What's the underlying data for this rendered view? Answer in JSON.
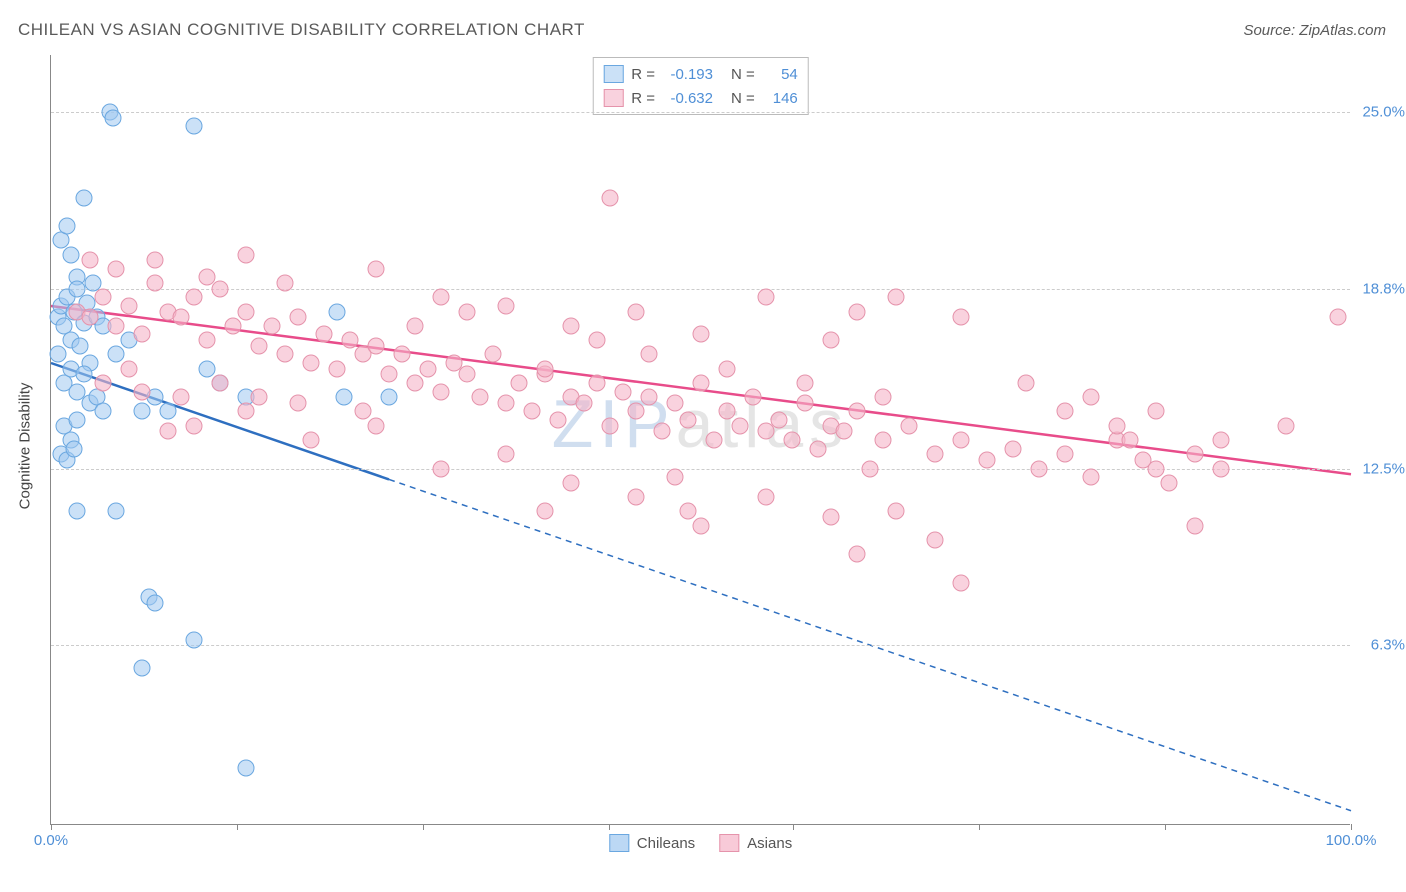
{
  "title": "CHILEAN VS ASIAN COGNITIVE DISABILITY CORRELATION CHART",
  "source": "Source: ZipAtlas.com",
  "watermark": "ZIPatlas",
  "y_axis_title": "Cognitive Disability",
  "chart": {
    "type": "scatter",
    "xlim": [
      0,
      100
    ],
    "ylim": [
      0,
      27
    ],
    "xticks": [
      0,
      14.3,
      28.6,
      42.9,
      57.1,
      71.4,
      85.7,
      100
    ],
    "xtick_labels": {
      "0": "0.0%",
      "100": "100.0%"
    },
    "yticks": [
      6.3,
      12.5,
      18.8,
      25.0
    ],
    "ytick_labels": [
      "6.3%",
      "12.5%",
      "18.8%",
      "25.0%"
    ],
    "background_color": "#ffffff",
    "grid_color": "#cccccc",
    "axis_color": "#888888",
    "point_radius": 8.5,
    "series": [
      {
        "name": "Chileans",
        "fill": "rgba(160,200,240,0.55)",
        "stroke": "#6aa7e0",
        "trend_color": "#2e6fc0",
        "trend": {
          "x1": 0,
          "y1": 16.2,
          "x2": 100,
          "y2": 0.5,
          "solid_until_x": 26
        },
        "R": "-0.193",
        "N": "54",
        "points": [
          [
            0.5,
            17.8
          ],
          [
            0.8,
            18.2
          ],
          [
            1.0,
            17.5
          ],
          [
            1.2,
            18.5
          ],
          [
            1.5,
            17.0
          ],
          [
            1.8,
            18.0
          ],
          [
            2.0,
            19.2
          ],
          [
            2.2,
            16.8
          ],
          [
            2.5,
            17.6
          ],
          [
            2.8,
            18.3
          ],
          [
            3.0,
            16.2
          ],
          [
            3.2,
            19.0
          ],
          [
            3.5,
            17.8
          ],
          [
            1.0,
            15.5
          ],
          [
            1.5,
            16.0
          ],
          [
            2.0,
            15.2
          ],
          [
            2.5,
            15.8
          ],
          [
            3.0,
            14.8
          ],
          [
            3.5,
            15.0
          ],
          [
            4.0,
            14.5
          ],
          [
            0.8,
            20.5
          ],
          [
            1.2,
            21.0
          ],
          [
            1.5,
            20.0
          ],
          [
            2.0,
            18.8
          ],
          [
            0.5,
            16.5
          ],
          [
            1.0,
            14.0
          ],
          [
            1.5,
            13.5
          ],
          [
            2.0,
            14.2
          ],
          [
            0.8,
            13.0
          ],
          [
            1.2,
            12.8
          ],
          [
            1.8,
            13.2
          ],
          [
            4.5,
            25.0
          ],
          [
            4.8,
            24.8
          ],
          [
            11.0,
            24.5
          ],
          [
            2.5,
            22.0
          ],
          [
            4.0,
            17.5
          ],
          [
            5.0,
            16.5
          ],
          [
            6.0,
            17.0
          ],
          [
            7.0,
            14.5
          ],
          [
            8.0,
            15.0
          ],
          [
            9.0,
            14.5
          ],
          [
            12.0,
            16.0
          ],
          [
            13.0,
            15.5
          ],
          [
            15.0,
            15.0
          ],
          [
            22.0,
            18.0
          ],
          [
            22.5,
            15.0
          ],
          [
            26.0,
            15.0
          ],
          [
            2.0,
            11.0
          ],
          [
            5.0,
            11.0
          ],
          [
            7.5,
            8.0
          ],
          [
            8.0,
            7.8
          ],
          [
            11.0,
            6.5
          ],
          [
            7.0,
            5.5
          ],
          [
            15.0,
            2.0
          ]
        ]
      },
      {
        "name": "Asians",
        "fill": "rgba(245,180,200,0.6)",
        "stroke": "#e593ab",
        "trend_color": "#e84c8a",
        "trend": {
          "x1": 0,
          "y1": 18.2,
          "x2": 100,
          "y2": 12.3,
          "solid_until_x": 100
        },
        "R": "-0.632",
        "N": "146",
        "points": [
          [
            2,
            18.0
          ],
          [
            3,
            17.8
          ],
          [
            4,
            18.5
          ],
          [
            5,
            17.5
          ],
          [
            6,
            18.2
          ],
          [
            7,
            17.2
          ],
          [
            8,
            19.0
          ],
          [
            9,
            18.0
          ],
          [
            10,
            17.8
          ],
          [
            11,
            18.5
          ],
          [
            12,
            17.0
          ],
          [
            13,
            18.8
          ],
          [
            14,
            17.5
          ],
          [
            15,
            18.0
          ],
          [
            16,
            16.8
          ],
          [
            17,
            17.5
          ],
          [
            18,
            16.5
          ],
          [
            19,
            17.8
          ],
          [
            20,
            16.2
          ],
          [
            21,
            17.2
          ],
          [
            22,
            16.0
          ],
          [
            23,
            17.0
          ],
          [
            24,
            16.5
          ],
          [
            25,
            16.8
          ],
          [
            26,
            15.8
          ],
          [
            27,
            16.5
          ],
          [
            28,
            15.5
          ],
          [
            29,
            16.0
          ],
          [
            30,
            15.2
          ],
          [
            31,
            16.2
          ],
          [
            32,
            15.8
          ],
          [
            33,
            15.0
          ],
          [
            34,
            16.5
          ],
          [
            35,
            14.8
          ],
          [
            36,
            15.5
          ],
          [
            37,
            14.5
          ],
          [
            38,
            15.8
          ],
          [
            39,
            14.2
          ],
          [
            40,
            15.0
          ],
          [
            41,
            14.8
          ],
          [
            42,
            15.5
          ],
          [
            43,
            14.0
          ],
          [
            44,
            15.2
          ],
          [
            45,
            14.5
          ],
          [
            46,
            15.0
          ],
          [
            47,
            13.8
          ],
          [
            48,
            14.8
          ],
          [
            49,
            14.2
          ],
          [
            50,
            15.5
          ],
          [
            51,
            13.5
          ],
          [
            52,
            14.5
          ],
          [
            53,
            14.0
          ],
          [
            54,
            15.0
          ],
          [
            55,
            13.8
          ],
          [
            56,
            14.2
          ],
          [
            57,
            13.5
          ],
          [
            58,
            14.8
          ],
          [
            59,
            13.2
          ],
          [
            60,
            14.0
          ],
          [
            61,
            13.8
          ],
          [
            62,
            14.5
          ],
          [
            63,
            12.5
          ],
          [
            64,
            13.5
          ],
          [
            66,
            14.0
          ],
          [
            68,
            13.0
          ],
          [
            70,
            13.5
          ],
          [
            72,
            12.8
          ],
          [
            74,
            13.2
          ],
          [
            76,
            12.5
          ],
          [
            78,
            13.0
          ],
          [
            80,
            12.2
          ],
          [
            82,
            13.5
          ],
          [
            84,
            12.8
          ],
          [
            86,
            12.0
          ],
          [
            88,
            13.0
          ],
          [
            90,
            12.5
          ],
          [
            99,
            17.8
          ],
          [
            5,
            19.5
          ],
          [
            8,
            19.8
          ],
          [
            12,
            19.2
          ],
          [
            15,
            20.0
          ],
          [
            18,
            19.0
          ],
          [
            25,
            19.5
          ],
          [
            30,
            18.5
          ],
          [
            35,
            18.2
          ],
          [
            40,
            17.5
          ],
          [
            45,
            18.0
          ],
          [
            50,
            17.2
          ],
          [
            55,
            18.5
          ],
          [
            60,
            17.0
          ],
          [
            62,
            18.0
          ],
          [
            65,
            18.5
          ],
          [
            70,
            17.8
          ],
          [
            80,
            15.0
          ],
          [
            85,
            14.5
          ],
          [
            10,
            15.0
          ],
          [
            15,
            14.5
          ],
          [
            20,
            13.5
          ],
          [
            25,
            14.0
          ],
          [
            30,
            12.5
          ],
          [
            35,
            13.0
          ],
          [
            38,
            11.0
          ],
          [
            40,
            12.0
          ],
          [
            43,
            22.0
          ],
          [
            45,
            11.5
          ],
          [
            48,
            12.2
          ],
          [
            49,
            11.0
          ],
          [
            50,
            10.5
          ],
          [
            55,
            11.5
          ],
          [
            60,
            10.8
          ],
          [
            62,
            9.5
          ],
          [
            65,
            11.0
          ],
          [
            68,
            10.0
          ],
          [
            70,
            8.5
          ],
          [
            83,
            13.5
          ],
          [
            85,
            12.5
          ],
          [
            88,
            10.5
          ],
          [
            95,
            14.0
          ],
          [
            3,
            19.8
          ],
          [
            6,
            16.0
          ],
          [
            4,
            15.5
          ],
          [
            7,
            15.2
          ],
          [
            9,
            13.8
          ],
          [
            11,
            14.0
          ],
          [
            13,
            15.5
          ],
          [
            16,
            15.0
          ],
          [
            19,
            14.8
          ],
          [
            24,
            14.5
          ],
          [
            28,
            17.5
          ],
          [
            32,
            18.0
          ],
          [
            38,
            16.0
          ],
          [
            42,
            17.0
          ],
          [
            46,
            16.5
          ],
          [
            52,
            16.0
          ],
          [
            58,
            15.5
          ],
          [
            64,
            15.0
          ],
          [
            75,
            15.5
          ],
          [
            78,
            14.5
          ],
          [
            82,
            14.0
          ],
          [
            90,
            13.5
          ]
        ]
      }
    ]
  },
  "legend_bottom": [
    {
      "label": "Chileans",
      "fill": "rgba(160,200,240,0.7)",
      "stroke": "#6aa7e0"
    },
    {
      "label": "Asians",
      "fill": "rgba(245,180,200,0.7)",
      "stroke": "#e593ab"
    }
  ]
}
